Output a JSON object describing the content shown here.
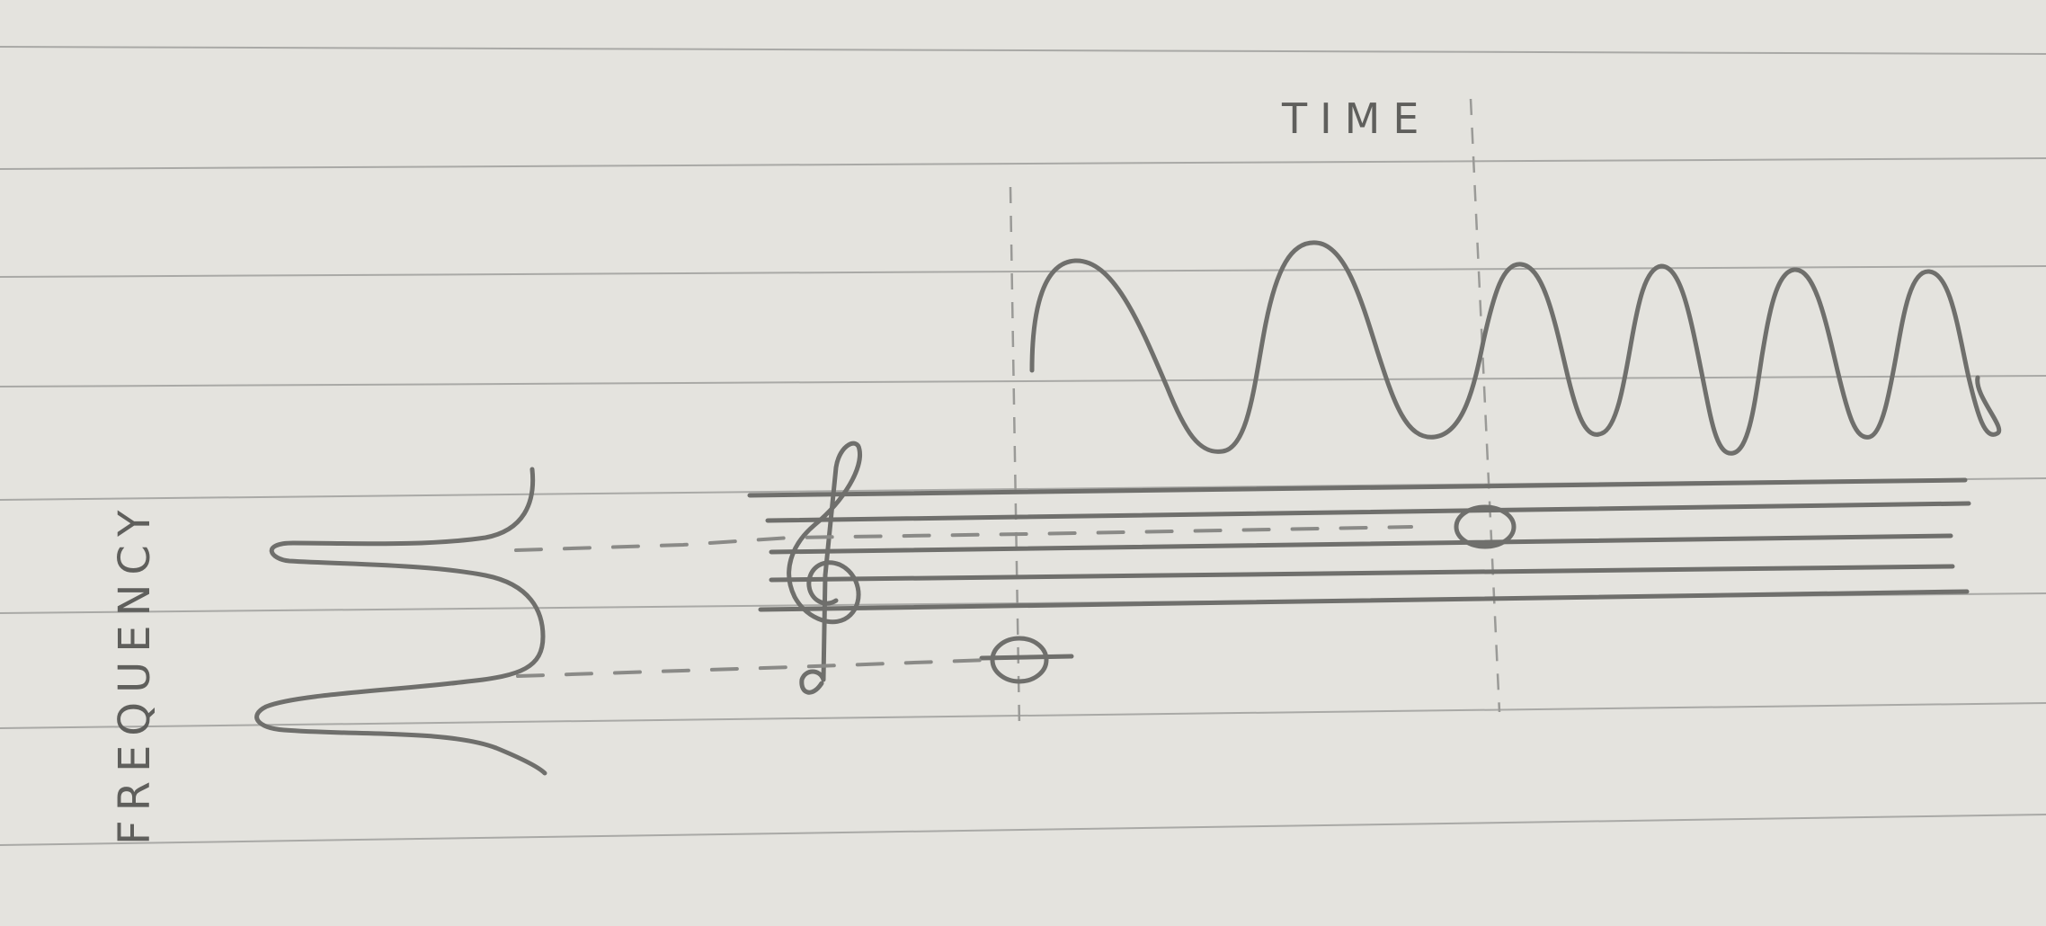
{
  "labels": {
    "time_axis": "TIME",
    "frequency_axis": "FREQUENCY"
  },
  "colors": {
    "paper": "#e4e3de",
    "ruled_line": "#a9a9a6",
    "pencil": "#6f6f6c"
  }
}
